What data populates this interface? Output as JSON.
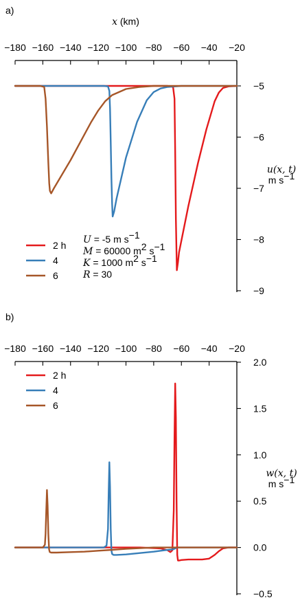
{
  "colors": {
    "h2": "#e41a1c",
    "h4": "#377eb8",
    "h6": "#a65628"
  },
  "chart_data": [
    {
      "type": "line",
      "panel_label": "a)",
      "xlabel_var": "x",
      "xlabel_unit": "(km)",
      "ylabel_var": "u(x, t)",
      "ylabel_unit": "m s",
      "ylabel_unit_exp": "−1",
      "xlim": [
        -180,
        -20
      ],
      "ylim": [
        -9,
        -4.5
      ],
      "x_ticks": [
        -180,
        -160,
        -140,
        -120,
        -100,
        -80,
        -60,
        -40,
        -20
      ],
      "x_tick_labels": [
        "−180",
        "−160",
        "−140",
        "−120",
        "−100",
        "−80",
        "−60",
        "−40",
        "−20"
      ],
      "y_ticks": [
        -5,
        -6,
        -7,
        -8,
        -9
      ],
      "y_tick_labels": [
        "−5",
        "−6",
        "−7",
        "−8",
        "−9"
      ],
      "legend": [
        "2 h",
        "4",
        "6"
      ],
      "parameters": [
        {
          "var": "U",
          "text": " = -5 m s",
          "exp": "−1"
        },
        {
          "var": "M",
          "text": " = 60000 m",
          "sup1": "2",
          "text2": " s",
          "exp": "−1"
        },
        {
          "var": "K",
          "text": " = 1000 m",
          "sup1": "2",
          "text2": " s",
          "exp": "−1"
        },
        {
          "var": "R",
          "text": " = 30",
          "exp": ""
        }
      ],
      "series": [
        {
          "name": "2 h",
          "x": [
            -180,
            -70,
            -66,
            -65,
            -64.5,
            -64,
            -63.3,
            -62.5,
            -61.7,
            -55,
            -48,
            -42,
            -36,
            -33,
            -30,
            -26,
            -20
          ],
          "y": [
            -5,
            -5,
            -5.02,
            -5.25,
            -6.3,
            -7.6,
            -8.6,
            -8.45,
            -8.25,
            -7.35,
            -6.5,
            -5.85,
            -5.3,
            -5.13,
            -5.04,
            -5.01,
            -5
          ]
        },
        {
          "name": "4",
          "x": [
            -180,
            -116,
            -113,
            -112,
            -111.5,
            -111,
            -110.5,
            -110,
            -109.6,
            -108.5,
            -106.8,
            -100,
            -92,
            -85,
            -80,
            -75,
            -70,
            -60,
            -20
          ],
          "y": [
            -5,
            -5,
            -5.01,
            -5.1,
            -5.45,
            -6.1,
            -6.8,
            -7.3,
            -7.55,
            -7.45,
            -7.2,
            -6.4,
            -5.7,
            -5.28,
            -5.12,
            -5.05,
            -5.02,
            -5,
            -5
          ]
        },
        {
          "name": "6",
          "x": [
            -180,
            -162,
            -159,
            -158,
            -157,
            -156,
            -155.4,
            -154.9,
            -154,
            -152,
            -140,
            -130,
            -125,
            -120,
            -115,
            -110,
            -100,
            -90,
            -80,
            -20
          ],
          "y": [
            -5,
            -5,
            -5.02,
            -5.25,
            -5.8,
            -6.5,
            -6.9,
            -7.05,
            -7.1,
            -7.0,
            -6.45,
            -5.95,
            -5.7,
            -5.48,
            -5.3,
            -5.18,
            -5.06,
            -5.02,
            -5,
            -5
          ]
        }
      ]
    },
    {
      "type": "line",
      "panel_label": "b)",
      "ylabel_var": "w(x, t)",
      "ylabel_unit": "m s",
      "ylabel_unit_exp": "−1",
      "xlim": [
        -180,
        -20
      ],
      "ylim": [
        -0.5,
        2.0
      ],
      "x_ticks": [
        -180,
        -160,
        -140,
        -120,
        -100,
        -80,
        -60,
        -40,
        -20
      ],
      "x_tick_labels": [
        "−180",
        "−160",
        "−140",
        "−120",
        "−100",
        "−80",
        "−60",
        "−40",
        "−20"
      ],
      "y_ticks": [
        2.0,
        1.5,
        1.0,
        0.5,
        0.0,
        -0.5
      ],
      "y_tick_labels": [
        "2.0",
        "1.5",
        "1.0",
        "0.5",
        "0.0",
        "−0.5"
      ],
      "legend": [
        "2 h",
        "4",
        "6"
      ],
      "series": [
        {
          "name": "2 h",
          "x": [
            -180,
            -90,
            -75,
            -70,
            -68,
            -66.5,
            -65.5,
            -65,
            -64.5,
            -64,
            -63.5,
            -63,
            -62.5,
            -61.5,
            -60,
            -55,
            -45,
            -40,
            -36,
            -33,
            -30,
            -26,
            -20
          ],
          "y": [
            0,
            0,
            -0.01,
            -0.03,
            -0.05,
            -0.03,
            0.4,
            1.2,
            1.77,
            1.4,
            0.5,
            -0.08,
            -0.14,
            -0.14,
            -0.135,
            -0.13,
            -0.13,
            -0.12,
            -0.08,
            -0.04,
            -0.01,
            0,
            0
          ]
        },
        {
          "name": "4",
          "x": [
            -180,
            -116,
            -114,
            -113,
            -112.5,
            -112,
            -111.5,
            -111,
            -110.5,
            -110,
            -109,
            -107,
            -100,
            -90,
            -80,
            -72,
            -66,
            -63,
            -20
          ],
          "y": [
            0,
            0,
            0.02,
            0.2,
            0.6,
            0.92,
            0.65,
            0.2,
            -0.03,
            -0.07,
            -0.08,
            -0.08,
            -0.075,
            -0.06,
            -0.045,
            -0.03,
            -0.02,
            0,
            0
          ]
        },
        {
          "name": "6",
          "x": [
            -180,
            -160,
            -158.5,
            -158,
            -157.5,
            -157,
            -156.5,
            -156,
            -155.5,
            -155,
            -154,
            -150,
            -140,
            -130,
            -120,
            -110,
            -100,
            -80,
            -20
          ],
          "y": [
            0,
            0,
            0.03,
            0.15,
            0.4,
            0.62,
            0.45,
            0.15,
            -0.02,
            -0.05,
            -0.055,
            -0.055,
            -0.05,
            -0.045,
            -0.035,
            -0.025,
            -0.015,
            0,
            0
          ]
        }
      ]
    }
  ]
}
